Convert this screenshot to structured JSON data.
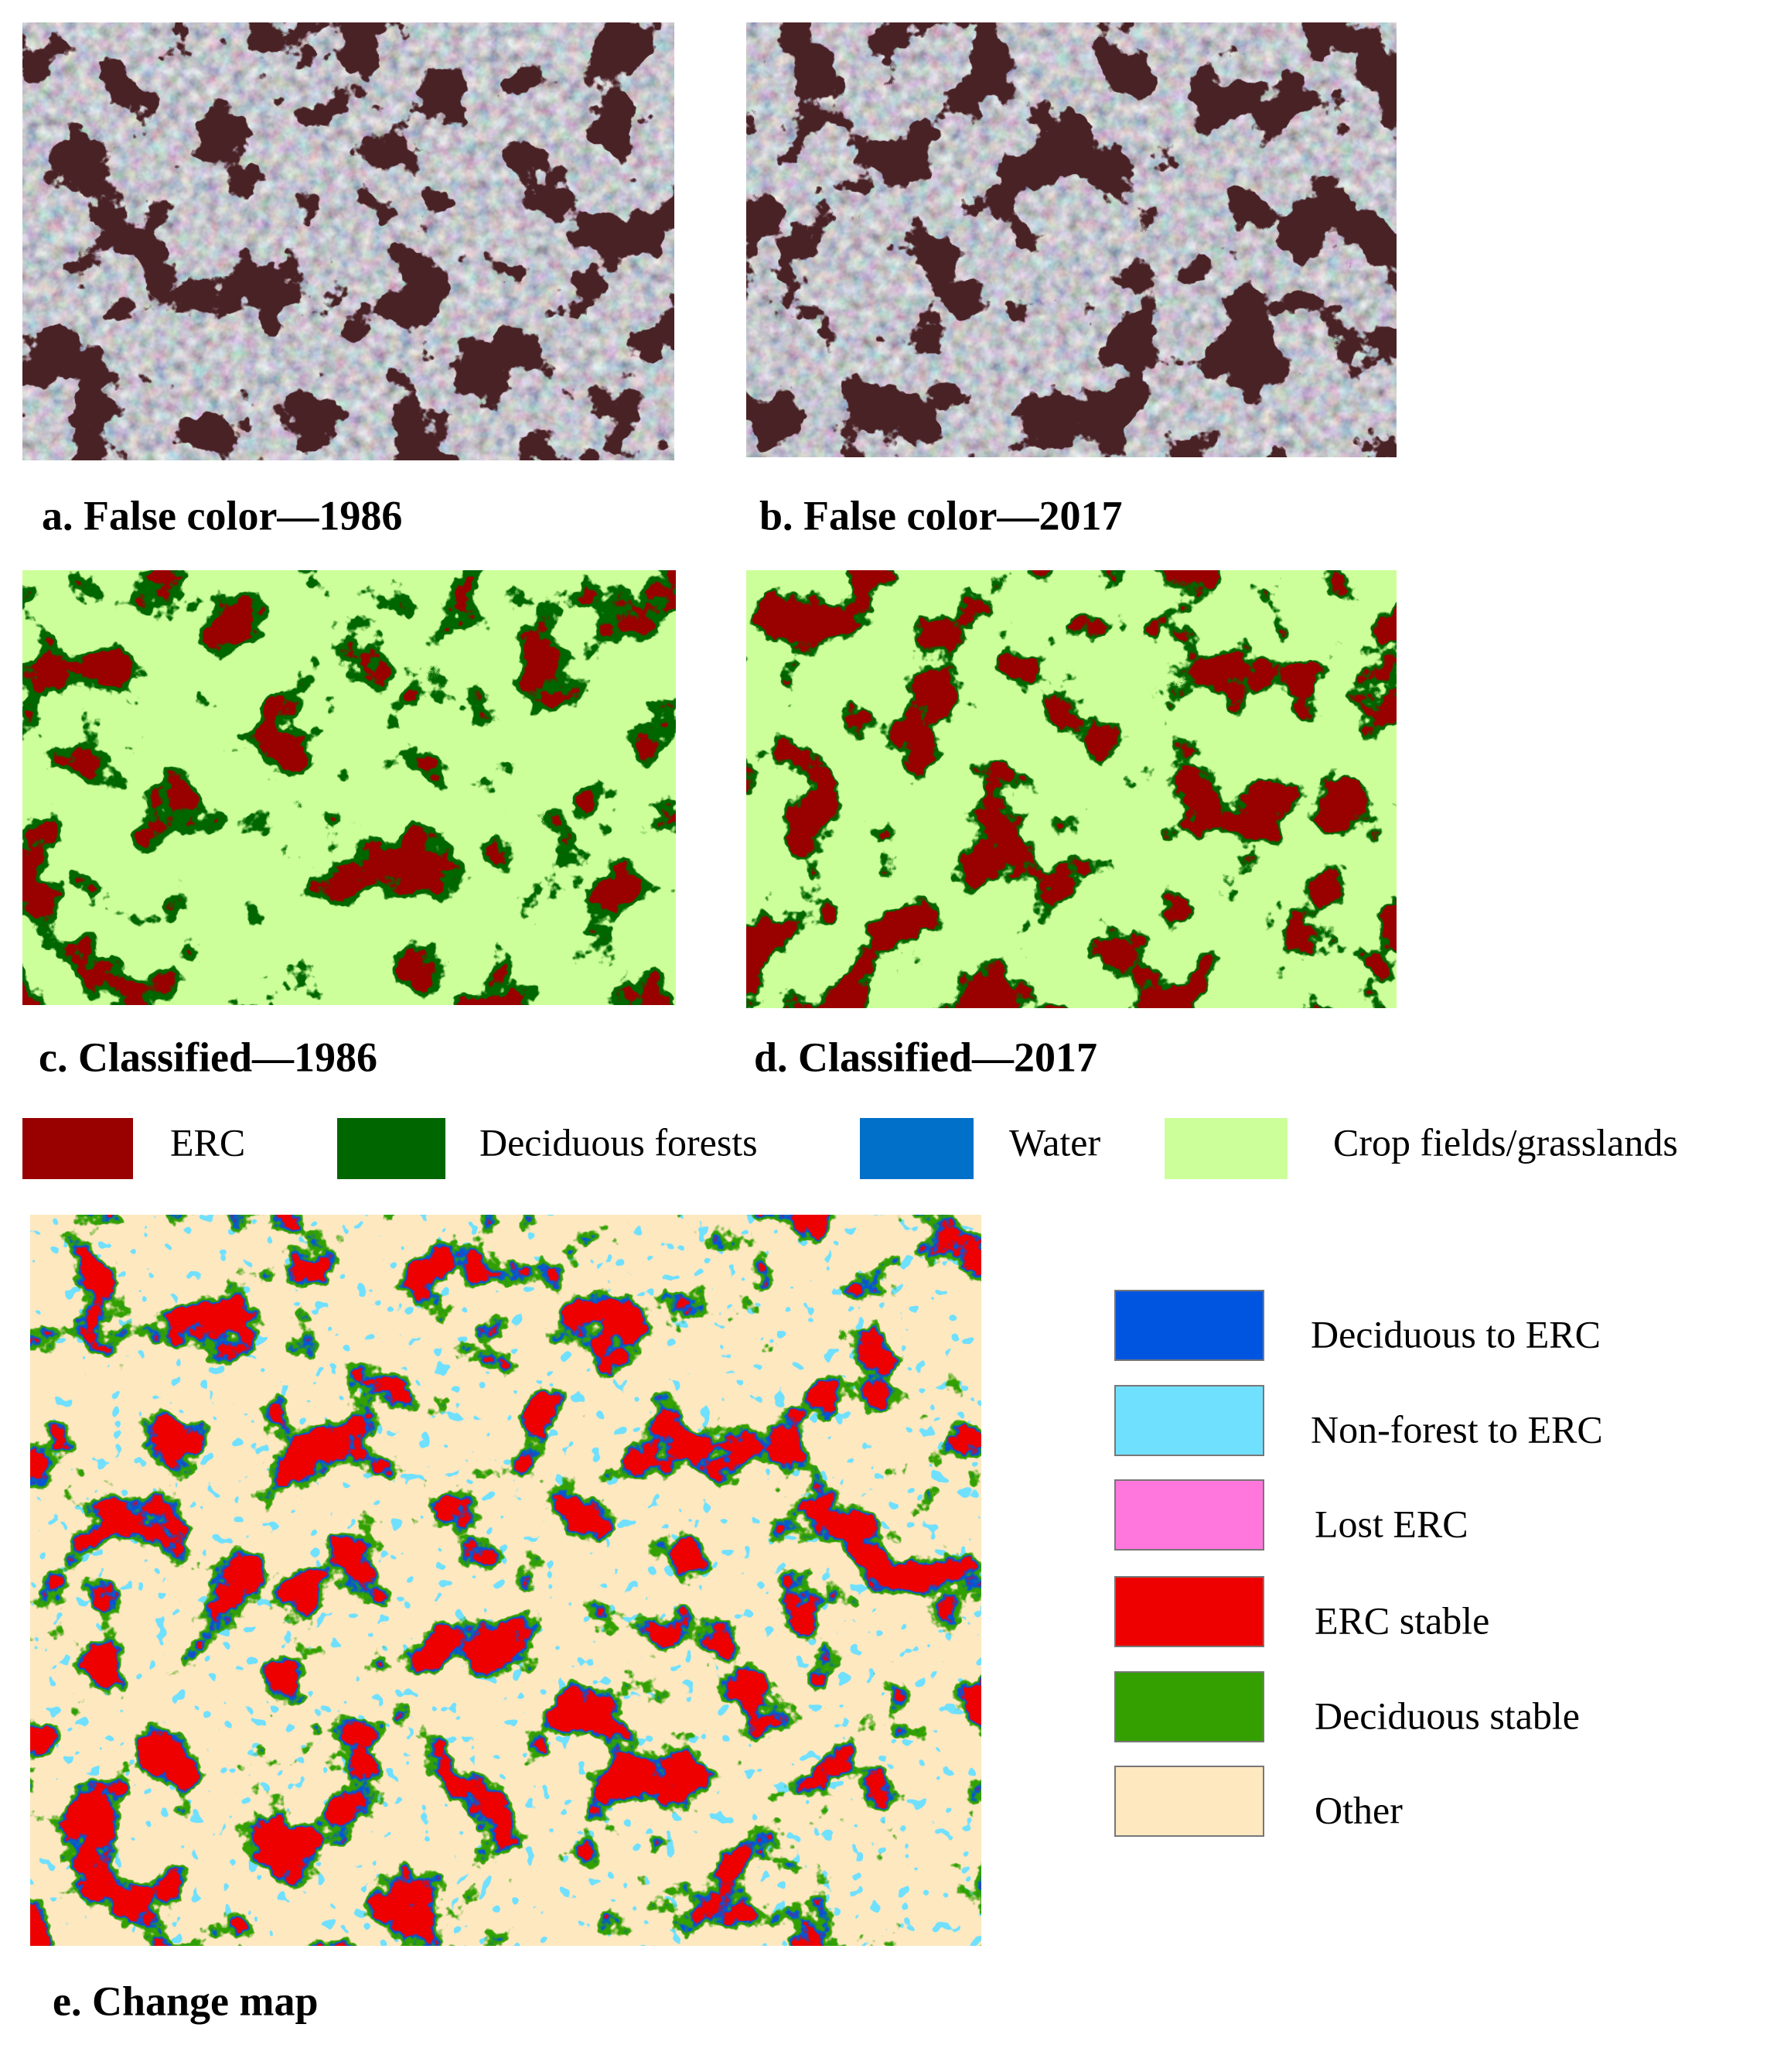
{
  "panels": [
    {
      "caption": "a. False color—1986"
    },
    {
      "caption": "b. False color—2017"
    },
    {
      "caption": "c. Classified—1986"
    },
    {
      "caption": "d. Classified—2017"
    },
    {
      "caption": "e. Change map"
    }
  ],
  "class_legend": [
    {
      "label": "ERC",
      "color": "#990000"
    },
    {
      "label": "Deciduous forests",
      "color": "#006600"
    },
    {
      "label": "Water",
      "color": "#0070c8"
    },
    {
      "label": "Crop fields/grasslands",
      "color": "#ccff99"
    }
  ],
  "change_legend": [
    {
      "label": "Deciduous to ERC",
      "color": "#0055e0"
    },
    {
      "label": "Non-forest to ERC",
      "color": "#70e0ff"
    },
    {
      "label": "Lost ERC",
      "color": "#ff77dd"
    },
    {
      "label": "ERC stable",
      "color": "#ee0000"
    },
    {
      "label": "Deciduous stable",
      "color": "#33a000"
    },
    {
      "label": "Other",
      "color": "#fde8c0"
    }
  ]
}
